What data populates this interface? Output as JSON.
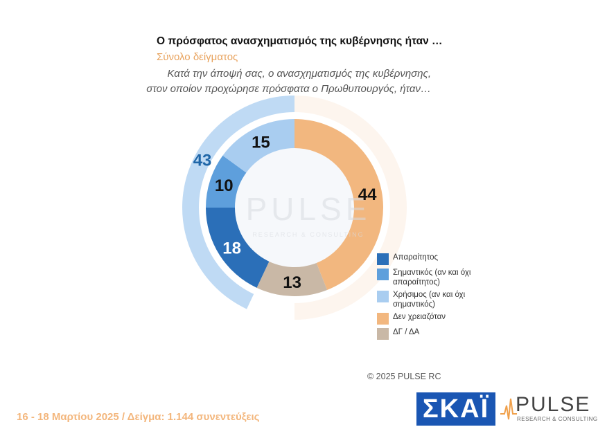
{
  "header": {
    "title": "Ο πρόσφατος ανασχηματισμός της κυβέρνησης ήταν …",
    "subtitle": "Σύνολο δείγματος",
    "question_line1": "Κατά την άποψή σας, ο ανασχηματισμός της κυβέρνησης,",
    "question_line2": "στον οποίον προχώρησε πρόσφατα ο Πρωθυπουργός, ήταν…"
  },
  "chart_data": {
    "type": "pie",
    "variant": "donut",
    "series": [
      {
        "name": "Απαραίτητος",
        "value": 18,
        "color": "#2b6fb8"
      },
      {
        "name": "Σημαντικός (αν και όχι απαραίτητος)",
        "value": 10,
        "color": "#5e9fdc"
      },
      {
        "name": "Χρήσιμος (αν και όχι σημαντικός)",
        "value": 15,
        "color": "#a9cdf0"
      },
      {
        "name": "Δεν χρειαζόταν",
        "value": 44,
        "color": "#f2b77f"
      },
      {
        "name": "ΔΓ / ΔΑ",
        "value": 13,
        "color": "#c9b8a6"
      }
    ],
    "outer_total": {
      "value": 43,
      "color": "#a9cdf0",
      "label_color": "#1f66a8"
    },
    "legend_position": "bottom-right"
  },
  "watermark": {
    "word": "PULSE",
    "tagline": "RESEARCH & CONSULTING"
  },
  "copyright": "© 2025 PULSE RC",
  "footer": "16 - 18 Μαρτίου 2025  /  Δείγμα:  1.144 συνεντεύξεις",
  "logos": {
    "skai": "ΣΚΑΪ",
    "pulse": "PULSE",
    "pulse_tagline": "RESEARCH & CONSULTING"
  }
}
